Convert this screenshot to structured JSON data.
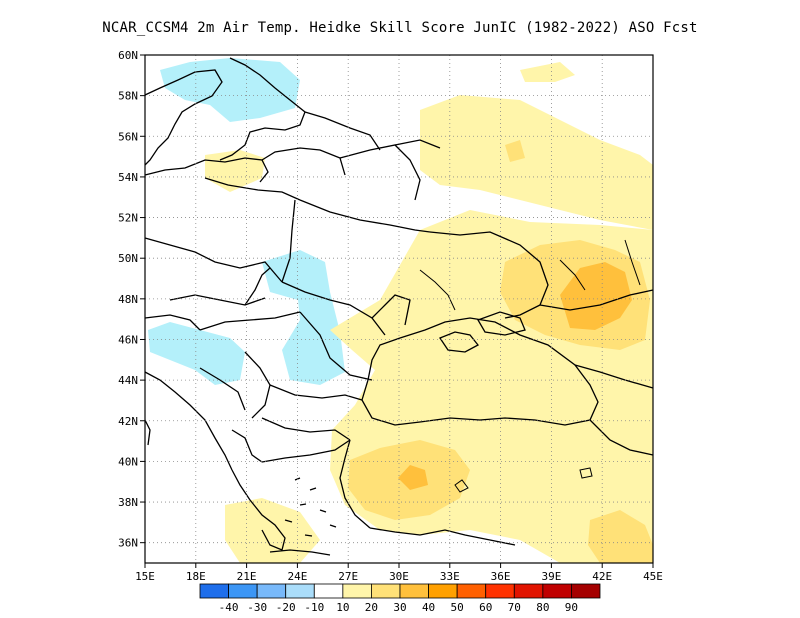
{
  "title": "NCAR_CCSM4  2m Air Temp. Heidke Skill Score JunIC (1982-2022) ASO Fcst",
  "map": {
    "lon_range": [
      15,
      45
    ],
    "lat_range": [
      35,
      60
    ],
    "lat_labels": [
      "60N",
      "58N",
      "56N",
      "54N",
      "52N",
      "50N",
      "48N",
      "46N",
      "44N",
      "42N",
      "40N",
      "38N",
      "36N"
    ],
    "lon_labels": [
      "15E",
      "18E",
      "21E",
      "24E",
      "27E",
      "30E",
      "33E",
      "36E",
      "39E",
      "42E",
      "45E"
    ],
    "grid": "dotted"
  },
  "colorbar": {
    "labels": [
      "-40",
      "-30",
      "-20",
      "-10",
      "10",
      "20",
      "30",
      "40",
      "50",
      "60",
      "70",
      "80",
      "90"
    ],
    "colors": [
      "#1e6eeb",
      "#3c96f5",
      "#78b9fa",
      "#aaddfa",
      "#ffffff",
      "#fff5aa",
      "#ffe178",
      "#ffc03c",
      "#ffa000",
      "#ff6000",
      "#ff3200",
      "#e11400",
      "#c00000",
      "#a50000"
    ]
  },
  "shading": {
    "light_blue": "#b4f0fa",
    "pale_yellow": "#fff5aa",
    "yellow": "#ffe178",
    "orange": "#ffc03c"
  }
}
